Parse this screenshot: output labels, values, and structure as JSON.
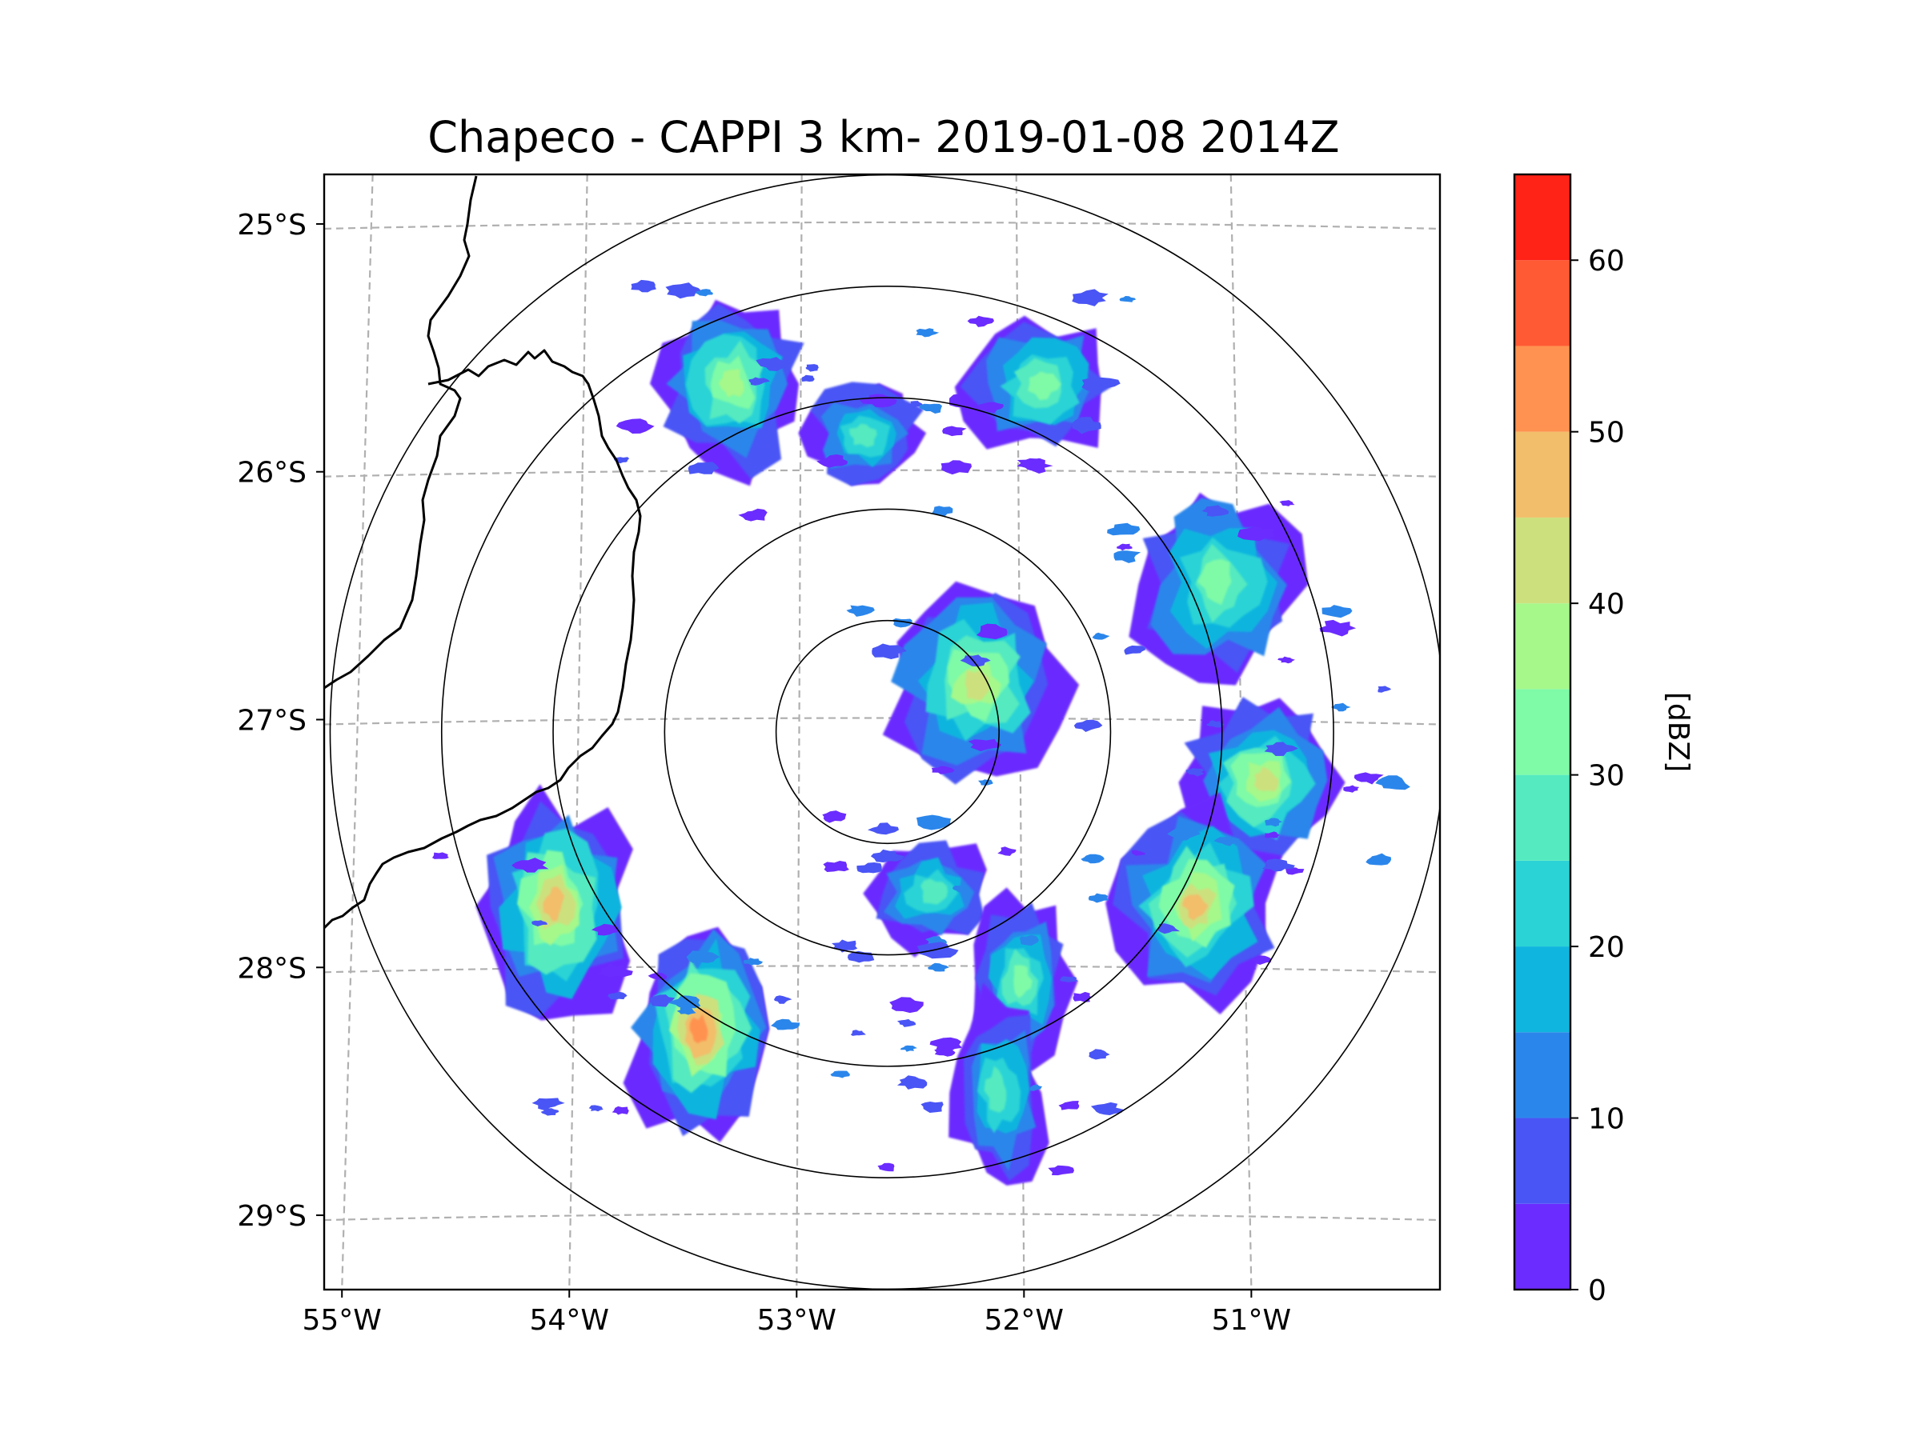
{
  "title": "Chapeco - CAPPI 3 km- 2019-01-08 2014Z",
  "map": {
    "lon_range": [
      -55.15,
      -50.1
    ],
    "lat_range": [
      -29.3,
      -24.8
    ],
    "radar_site": {
      "lon": -52.6,
      "lat": -27.05
    },
    "range_rings_km": [
      50,
      100,
      150,
      200,
      250
    ],
    "gridlines": true,
    "x_ticks": [
      {
        "value": -55,
        "label": "55°W"
      },
      {
        "value": -54,
        "label": "54°W"
      },
      {
        "value": -53,
        "label": "53°W"
      },
      {
        "value": -52,
        "label": "52°W"
      },
      {
        "value": -51,
        "label": "51°W"
      }
    ],
    "y_ticks": [
      {
        "value": -25,
        "label": "25°S"
      },
      {
        "value": -26,
        "label": "26°S"
      },
      {
        "value": -27,
        "label": "27°S"
      },
      {
        "value": -28,
        "label": "28°S"
      },
      {
        "value": -29,
        "label": "29°S"
      }
    ],
    "coastline_color": "#000000"
  },
  "colorbar": {
    "label": "[dBZ]",
    "min": 0,
    "max": 65,
    "ticks": [
      {
        "value": 0,
        "label": "0"
      },
      {
        "value": 10,
        "label": "10"
      },
      {
        "value": 20,
        "label": "20"
      },
      {
        "value": 30,
        "label": "30"
      },
      {
        "value": 40,
        "label": "40"
      },
      {
        "value": 50,
        "label": "50"
      },
      {
        "value": 60,
        "label": "60"
      }
    ],
    "bins": [
      {
        "from": 0,
        "to": 5,
        "color": "#6b2cff"
      },
      {
        "from": 5,
        "to": 10,
        "color": "#4a55f5"
      },
      {
        "from": 10,
        "to": 15,
        "color": "#2b86eb"
      },
      {
        "from": 15,
        "to": 20,
        "color": "#0fb5de"
      },
      {
        "from": 20,
        "to": 25,
        "color": "#2ad3d6"
      },
      {
        "from": 25,
        "to": 30,
        "color": "#55eac0"
      },
      {
        "from": 30,
        "to": 35,
        "color": "#7ffaa7"
      },
      {
        "from": 35,
        "to": 40,
        "color": "#a6f88a"
      },
      {
        "from": 40,
        "to": 45,
        "color": "#cde07e"
      },
      {
        "from": 45,
        "to": 50,
        "color": "#f2be6b"
      },
      {
        "from": 50,
        "to": 55,
        "color": "#ff9250"
      },
      {
        "from": 55,
        "to": 60,
        "color": "#ff5a33"
      },
      {
        "from": 60,
        "to": 65,
        "color": "#ff2217"
      }
    ]
  },
  "echoes": [
    {
      "name": "north-cell",
      "lon": -53.3,
      "lat": -25.65,
      "peak_dbz": 35
    },
    {
      "name": "north-center-cell",
      "lon": -52.7,
      "lat": -25.85,
      "peak_dbz": 25
    },
    {
      "name": "northeast-cell",
      "lon": -51.9,
      "lat": -25.65,
      "peak_dbz": 30
    },
    {
      "name": "east-band-north",
      "lon": -51.1,
      "lat": -26.45,
      "peak_dbz": 30
    },
    {
      "name": "east-band-central",
      "lon": -50.9,
      "lat": -27.25,
      "peak_dbz": 40
    },
    {
      "name": "east-band-south",
      "lon": -51.2,
      "lat": -27.75,
      "peak_dbz": 45
    },
    {
      "name": "near-radar-cell",
      "lon": -52.2,
      "lat": -26.85,
      "peak_dbz": 40
    },
    {
      "name": "south-cell",
      "lon": -52.4,
      "lat": -27.7,
      "peak_dbz": 25
    },
    {
      "name": "south-southeast-cell",
      "lon": -52.0,
      "lat": -28.05,
      "peak_dbz": 30
    },
    {
      "name": "southwest-cell",
      "lon": -53.45,
      "lat": -28.25,
      "peak_dbz": 50
    },
    {
      "name": "west-cell",
      "lon": -54.1,
      "lat": -27.75,
      "peak_dbz": 45
    },
    {
      "name": "far-south-cell",
      "lon": -52.1,
      "lat": -28.5,
      "peak_dbz": 25
    }
  ]
}
